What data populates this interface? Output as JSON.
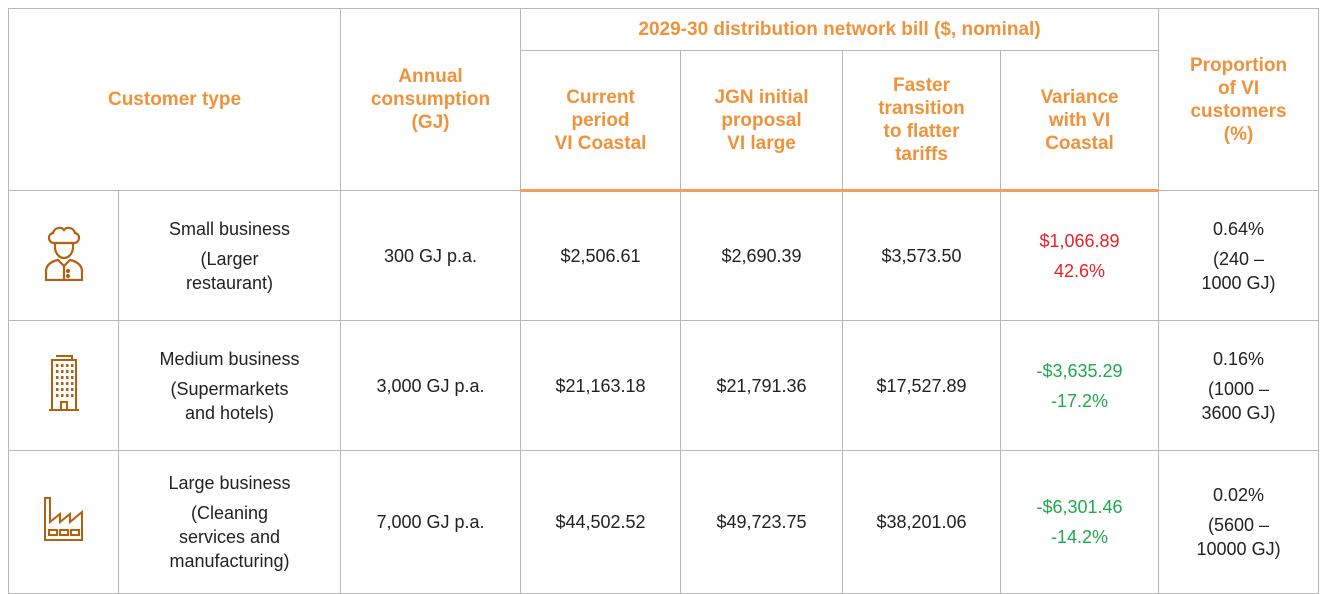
{
  "header": {
    "customer_type": "Customer type",
    "annual": [
      "Annual",
      "consumption",
      "(GJ)"
    ],
    "bill_group": "2029-30 distribution network bill ($, nominal)",
    "bill_columns": [
      [
        "Current",
        "period",
        "VI Coastal"
      ],
      [
        "JGN initial",
        "proposal",
        "VI large"
      ],
      [
        "Faster",
        "transition",
        "to flatter",
        "tariffs"
      ],
      [
        "Variance",
        "with VI",
        "Coastal"
      ]
    ],
    "proportion": [
      "Proportion",
      "of VI",
      "customers",
      "(%)"
    ]
  },
  "rows": [
    {
      "name": "Small business",
      "description": [
        "(Larger",
        "restaurant)"
      ],
      "annual": "300 GJ p.a.",
      "current": "$2,506.61",
      "jgn": "$2,690.39",
      "faster": "$3,573.50",
      "variance_amount": "$1,066.89",
      "variance_percent": "42.6%",
      "variance_color": "#e8202a",
      "proportion": "0.64%",
      "proportion_range": [
        "(240 –",
        "1000 GJ)"
      ]
    },
    {
      "name": "Medium business",
      "description": [
        "(Supermarkets",
        "and hotels)"
      ],
      "annual": "3,000 GJ p.a.",
      "current": "$21,163.18",
      "jgn": "$21,791.36",
      "faster": "$17,527.89",
      "variance_amount": "-$3,635.29",
      "variance_percent": "-17.2%",
      "variance_color": "#1ea94c",
      "proportion": "0.16%",
      "proportion_range": [
        "(1000 –",
        "3600 GJ)"
      ]
    },
    {
      "name": "Large business",
      "description": [
        "(Cleaning",
        "services and",
        "manufacturing)"
      ],
      "annual": "7,000 GJ p.a.",
      "current": "$44,502.52",
      "jgn": "$49,723.75",
      "faster": "$38,201.06",
      "variance_amount": "-$6,301.46",
      "variance_percent": "-14.2%",
      "variance_color": "#1ea94c",
      "proportion": "0.02%",
      "proportion_range": [
        "(5600 –",
        "10000 GJ)"
      ]
    }
  ]
}
